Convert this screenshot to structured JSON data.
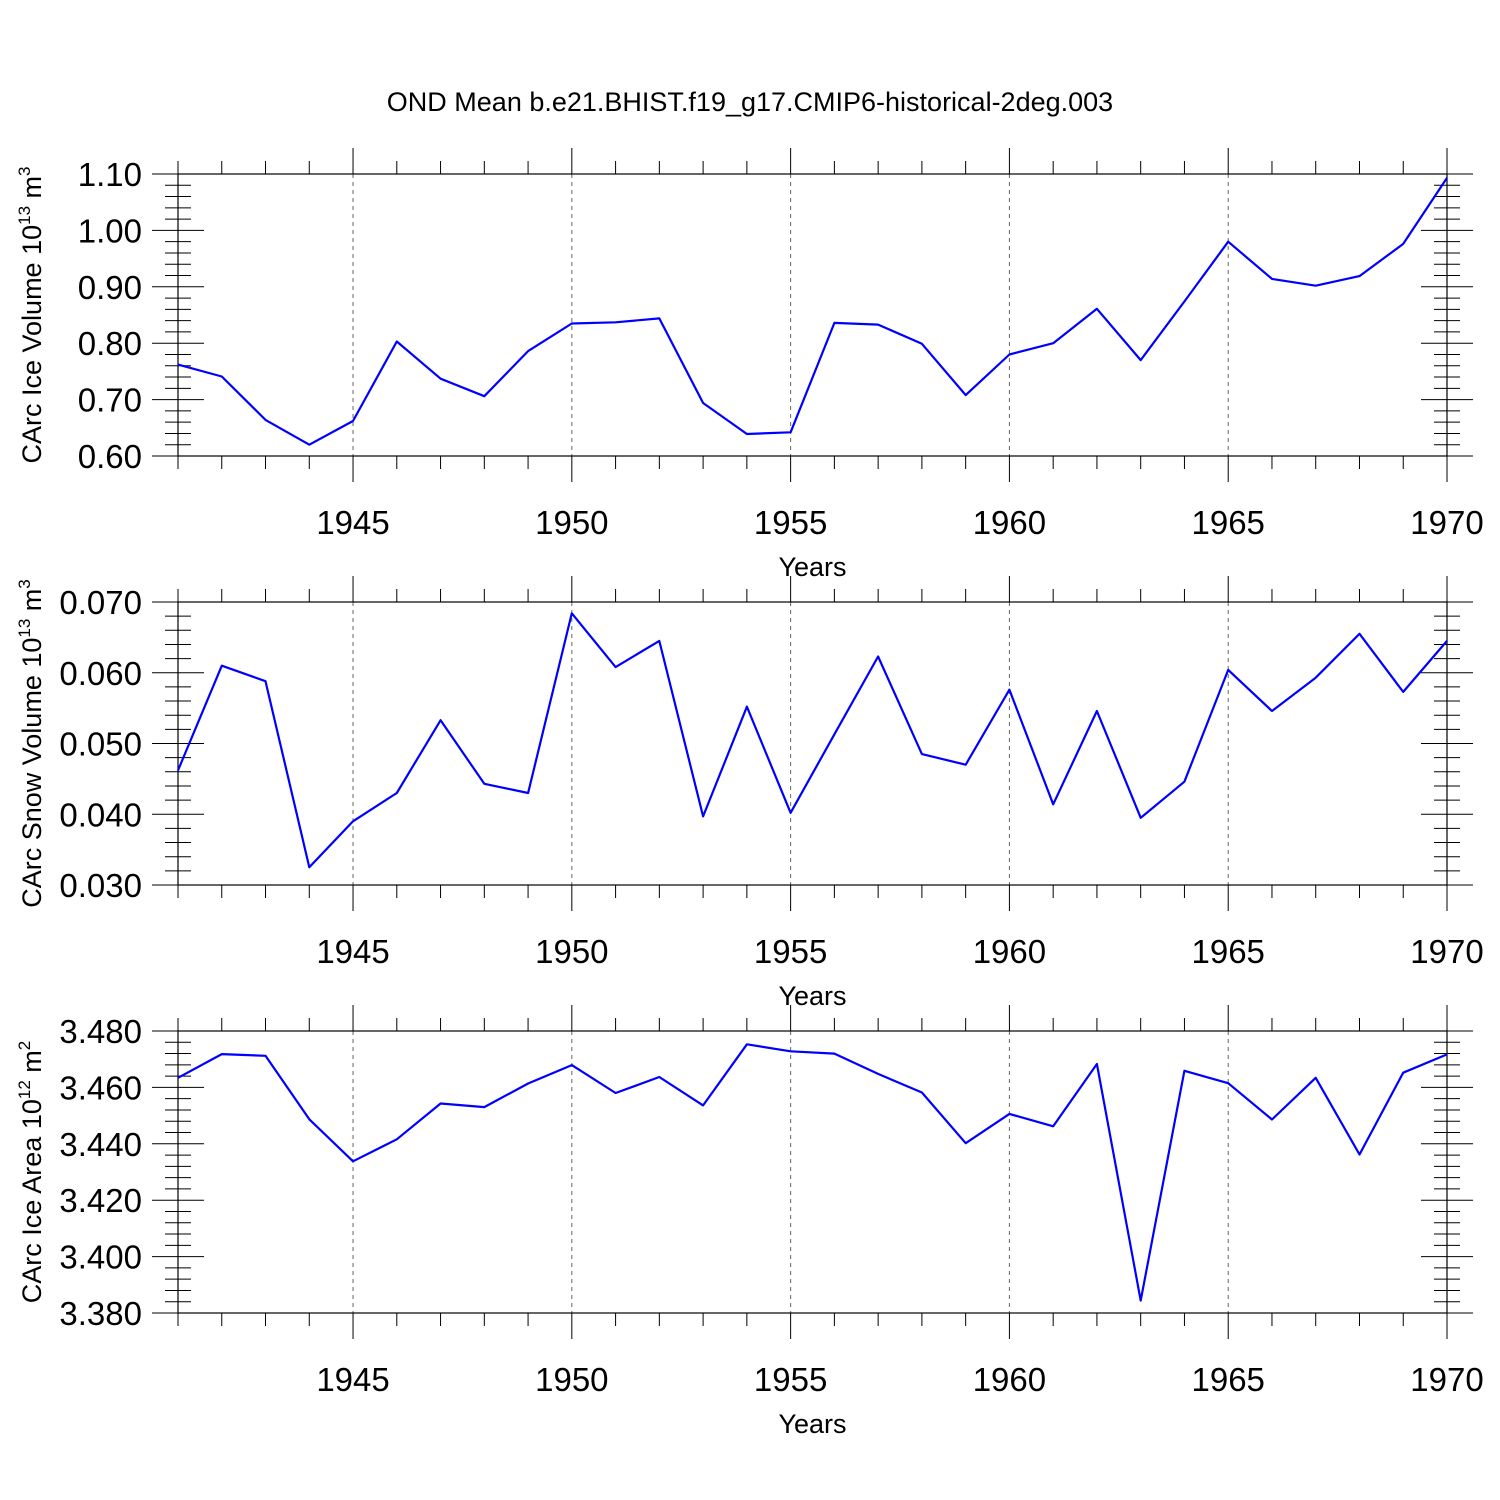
{
  "title": "OND Mean b.e21.BHIST.f19_g17.CMIP6-historical-2deg.003",
  "chart_data": [
    {
      "type": "line",
      "title": "",
      "xlabel": "Years",
      "ylabel_prefix": "CArc Ice Volume 10",
      "ylabel_exp": "13",
      "ylabel_unit": " m",
      "ylabel_unit_exp": "3",
      "xlim": [
        1941,
        1970
      ],
      "ylim": [
        0.6,
        1.1
      ],
      "yticks": [
        0.6,
        0.7,
        0.8,
        0.9,
        1.0,
        1.1
      ],
      "ytick_labels": [
        "0.60",
        "0.70",
        "0.80",
        "0.90",
        "1.00",
        "1.10"
      ],
      "y_minor_step": 0.02,
      "xticks": [
        1945,
        1950,
        1955,
        1960,
        1965,
        1970
      ],
      "xtick_labels": [
        "1945",
        "1950",
        "1955",
        "1960",
        "1965",
        "1970"
      ],
      "grid": "vertical dashed at major x ticks",
      "line_color": "#0000ff",
      "series": [
        {
          "name": "Ice Volume",
          "x": [
            1941,
            1942,
            1943,
            1944,
            1945,
            1946,
            1947,
            1948,
            1949,
            1950,
            1951,
            1952,
            1953,
            1954,
            1955,
            1956,
            1957,
            1958,
            1959,
            1960,
            1961,
            1962,
            1963,
            1964,
            1965,
            1966,
            1967,
            1968,
            1969,
            1970
          ],
          "values": [
            0.762,
            0.741,
            0.664,
            0.62,
            0.662,
            0.803,
            0.737,
            0.706,
            0.786,
            0.835,
            0.837,
            0.844,
            0.694,
            0.639,
            0.642,
            0.836,
            0.833,
            0.799,
            0.708,
            0.78,
            0.8,
            0.861,
            0.77,
            0.874,
            0.98,
            0.914,
            0.902,
            0.919,
            0.976,
            1.093
          ]
        }
      ]
    },
    {
      "type": "line",
      "title": "",
      "xlabel": "Years",
      "ylabel_prefix": "CArc Snow Volume 10",
      "ylabel_exp": "13",
      "ylabel_unit": " m",
      "ylabel_unit_exp": "3",
      "xlim": [
        1941,
        1970
      ],
      "ylim": [
        0.03,
        0.07
      ],
      "yticks": [
        0.03,
        0.04,
        0.05,
        0.06,
        0.07
      ],
      "ytick_labels": [
        "0.030",
        "0.040",
        "0.050",
        "0.060",
        "0.070"
      ],
      "y_minor_step": 0.002,
      "xticks": [
        1945,
        1950,
        1955,
        1960,
        1965,
        1970
      ],
      "xtick_labels": [
        "1945",
        "1950",
        "1955",
        "1960",
        "1965",
        "1970"
      ],
      "grid": "vertical dashed at major x ticks",
      "line_color": "#0000ff",
      "series": [
        {
          "name": "Snow Volume",
          "x": [
            1941,
            1942,
            1943,
            1944,
            1945,
            1946,
            1947,
            1948,
            1949,
            1950,
            1951,
            1952,
            1953,
            1954,
            1955,
            1956,
            1957,
            1958,
            1959,
            1960,
            1961,
            1962,
            1963,
            1964,
            1965,
            1966,
            1967,
            1968,
            1969,
            1970
          ],
          "values": [
            0.0462,
            0.061,
            0.0588,
            0.0325,
            0.039,
            0.043,
            0.0533,
            0.0443,
            0.043,
            0.0684,
            0.0608,
            0.0645,
            0.0397,
            0.0552,
            0.0402,
            0.0513,
            0.0623,
            0.0485,
            0.047,
            0.0576,
            0.0414,
            0.0546,
            0.0395,
            0.0446,
            0.0604,
            0.0546,
            0.0593,
            0.0655,
            0.0573,
            0.0645
          ]
        }
      ]
    },
    {
      "type": "line",
      "title": "",
      "xlabel": "Years",
      "ylabel_prefix": "CArc Ice Area 10",
      "ylabel_exp": "12",
      "ylabel_unit": " m",
      "ylabel_unit_exp": "2",
      "xlim": [
        1941,
        1970
      ],
      "ylim": [
        3.38,
        3.48
      ],
      "yticks": [
        3.38,
        3.4,
        3.42,
        3.44,
        3.46,
        3.48
      ],
      "ytick_labels": [
        "3.380",
        "3.400",
        "3.420",
        "3.440",
        "3.460",
        "3.480"
      ],
      "y_minor_step": 0.004,
      "xticks": [
        1945,
        1950,
        1955,
        1960,
        1965,
        1970
      ],
      "xtick_labels": [
        "1945",
        "1950",
        "1955",
        "1960",
        "1965",
        "1970"
      ],
      "grid": "vertical dashed at major x ticks",
      "line_color": "#0000ff",
      "series": [
        {
          "name": "Ice Area",
          "x": [
            1941,
            1942,
            1943,
            1944,
            1945,
            1946,
            1947,
            1948,
            1949,
            1950,
            1951,
            1952,
            1953,
            1954,
            1955,
            1956,
            1957,
            1958,
            1959,
            1960,
            1961,
            1962,
            1963,
            1964,
            1965,
            1966,
            1967,
            1968,
            1969,
            1970
          ],
          "values": [
            3.4634,
            3.4718,
            3.4712,
            3.4487,
            3.4338,
            3.4416,
            3.4543,
            3.453,
            3.4614,
            3.4679,
            3.458,
            3.4637,
            3.4536,
            3.4753,
            3.4728,
            3.472,
            3.4648,
            3.4582,
            3.4402,
            3.4506,
            3.4462,
            3.4683,
            3.3844,
            3.4659,
            3.4615,
            3.4486,
            3.4634,
            3.4362,
            3.4652,
            3.4717
          ]
        }
      ]
    }
  ]
}
